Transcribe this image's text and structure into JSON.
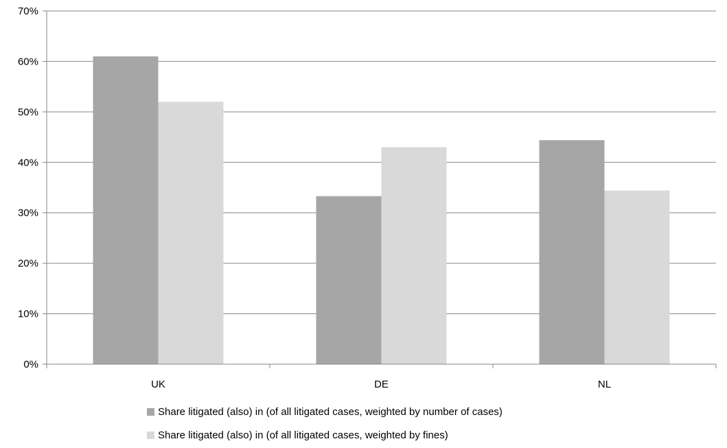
{
  "chart_data": {
    "type": "bar",
    "categories": [
      "UK",
      "DE",
      "NL"
    ],
    "series": [
      {
        "name": "Share litigated (also) in (of all litigated cases, weighted by number of cases)",
        "values": [
          61,
          33.3,
          44.4
        ],
        "color": "#a6a6a6"
      },
      {
        "name": "Share litigated (also) in (of all litigated cases, weighted by fines)",
        "values": [
          52,
          43,
          34.4
        ],
        "color": "#d9d9d9"
      }
    ],
    "y_ticks": [
      "0%",
      "10%",
      "20%",
      "30%",
      "40%",
      "50%",
      "60%",
      "70%"
    ],
    "ylim": [
      0,
      70
    ],
    "grid": true,
    "legend_position": "bottom",
    "colors": {
      "gridline": "#868686",
      "axis": "#868686"
    }
  }
}
